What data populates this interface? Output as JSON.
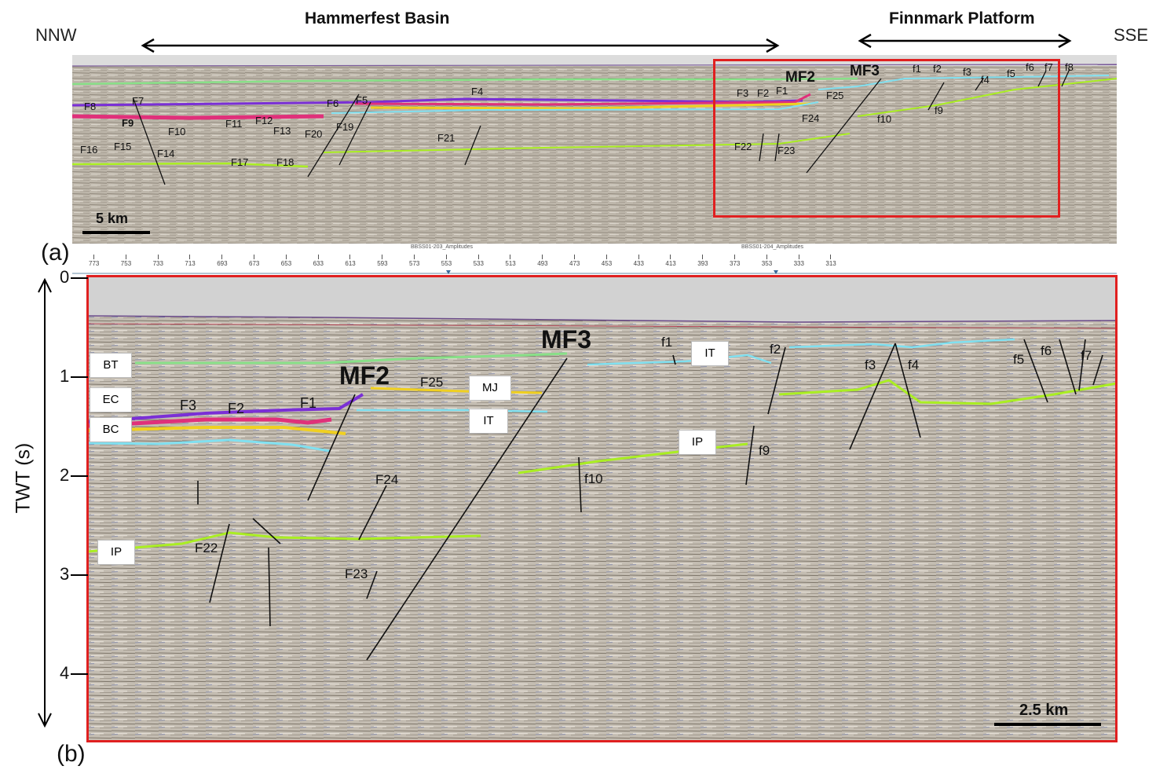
{
  "header": {
    "left_dir": "NNW",
    "right_dir": "SSE",
    "region_left": "Hammerfest Basin",
    "region_right": "Finnmark Platform"
  },
  "panel_a": {
    "label": "(a)",
    "scale_label": "5 km",
    "faults_major": [
      "MF2",
      "MF3"
    ],
    "fault_labels": [
      "F1",
      "F2",
      "F3",
      "F4",
      "F5",
      "F6",
      "F7",
      "F8",
      "F9",
      "F10",
      "F11",
      "F12",
      "F13",
      "F14",
      "F15",
      "F16",
      "F17",
      "F18",
      "F19",
      "F20",
      "F21",
      "F22",
      "F23",
      "F24",
      "F25",
      "f1",
      "f2",
      "f3",
      "f4",
      "f5",
      "f6",
      "f7",
      "f8",
      "f9",
      "f10"
    ]
  },
  "panel_b": {
    "label": "(b)",
    "axis_title": "TWT (s)",
    "y_ticks": [
      "0",
      "1",
      "2",
      "3",
      "4"
    ],
    "scale_label": "2.5 km",
    "line_names": [
      "BBSS01-203_Amplitudes",
      "BBSS01-204_Amplitudes"
    ],
    "cdp_ticks": [
      "773",
      "753",
      "733",
      "713",
      "693",
      "673",
      "653",
      "633",
      "613",
      "593",
      "573",
      "553",
      "533",
      "513",
      "493",
      "473",
      "453",
      "433",
      "413",
      "393",
      "373",
      "353",
      "333",
      "313"
    ],
    "horizons": {
      "BT": "BT",
      "EC": "EC",
      "BC": "BC",
      "MJ": "MJ",
      "IT1": "IT",
      "IT2": "IT",
      "IP1": "IP",
      "IP2": "IP"
    },
    "faults": {
      "MF2": "MF2",
      "MF3": "MF3",
      "F1": "F1",
      "F2": "F2",
      "F3": "F3",
      "F22": "F22",
      "F23": "F23",
      "F24": "F24",
      "F25": "F25",
      "f1": "f1",
      "f2": "f2",
      "f3": "f3",
      "f4": "f4",
      "f5": "f5",
      "f6": "f6",
      "f7": "f7",
      "f9": "f9",
      "f10": "f10"
    }
  },
  "colors": {
    "frame_red": "#e02020",
    "horizon_green_light": "#88e088",
    "horizon_purple": "#7a2fd6",
    "horizon_magenta": "#e0307a",
    "horizon_yellow": "#f0d020",
    "horizon_cyan": "#80e0f0",
    "horizon_lime": "#aaee22"
  }
}
